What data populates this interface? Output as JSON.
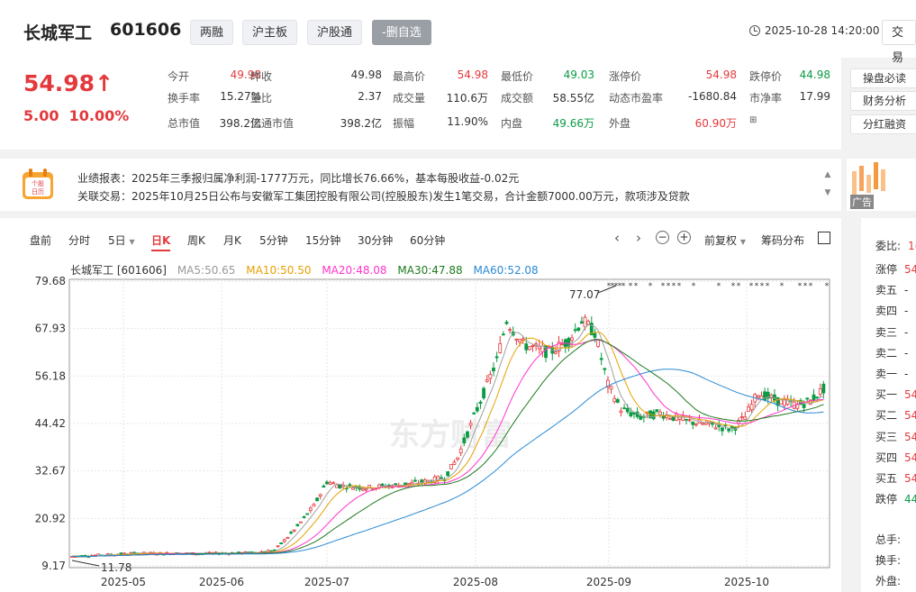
{
  "header": {
    "name": "长城军工",
    "code": "601606",
    "tags": [
      "两融",
      "沪主板",
      "沪股通",
      "-删自选"
    ],
    "datetime": "2025-10-28 14:20:00",
    "trade_label": "交易"
  },
  "quote": {
    "price": "54.98↑",
    "change": "5.00",
    "change_pct": "10.00%",
    "rows": [
      [
        [
          "今开",
          "49.98",
          "red"
        ],
        [
          "昨收",
          "49.98",
          ""
        ],
        [
          "最高价",
          "54.98",
          "red"
        ],
        [
          "最低价",
          "49.03",
          "green"
        ],
        [
          "涨停价",
          "54.98",
          "red"
        ],
        [
          "跌停价",
          "44.98",
          "green"
        ]
      ],
      [
        [
          "换手率",
          "15.27%",
          ""
        ],
        [
          "量比",
          "2.37",
          ""
        ],
        [
          "成交量",
          "110.6万",
          ""
        ],
        [
          "成交额",
          "58.55亿",
          ""
        ],
        [
          "动态市盈率",
          "-1680.84",
          ""
        ],
        [
          "市净率",
          "17.99",
          ""
        ]
      ],
      [
        [
          "总市值",
          "398.2亿",
          ""
        ],
        [
          "流通市值",
          "398.2亿",
          ""
        ],
        [
          "振幅",
          "11.90%",
          ""
        ],
        [
          "内盘",
          "49.66万",
          "green"
        ],
        [
          "外盘",
          "60.90万",
          "red"
        ],
        [
          "",
          "",
          " "
        ]
      ]
    ],
    "side_buttons": [
      "操盘必读",
      "财务分析",
      "分红融资"
    ]
  },
  "notice": {
    "icon_text": [
      "个股",
      "日历"
    ],
    "line1": "业绩报表：2025年三季报归属净利润-1777万元，同比增长76.66%，基本每股收益-0.02元",
    "line2": "关联交易：2025年10月25日公布与安徽军工集团控股有限公司(控股股东)发生1笔交易，合计金额7000.00万元，款项涉及贷款"
  },
  "ad": {
    "label": "广告"
  },
  "chart_tabs": [
    "盘前",
    "分时",
    "5日",
    "日K",
    "周K",
    "月K",
    "5分钟",
    "15分钟",
    "30分钟",
    "60分钟"
  ],
  "chart_tools": {
    "adjust": "前复权",
    "dist": "筹码分布"
  },
  "ma": {
    "name": "长城军工 [601606]",
    "ma5": "MA5:50.65",
    "ma10": "MA10:50.50",
    "ma20": "MA20:48.08",
    "ma30": "MA30:47.88",
    "ma60": "MA60:52.08"
  },
  "colors": {
    "up": "#e4393c",
    "down": "#0a9b43",
    "ma5": "#a0a0a0",
    "ma10": "#e6a000",
    "ma20": "#ff33cc",
    "ma30": "#1e7a1e",
    "ma60": "#2a8ad4"
  },
  "chart_data": {
    "type": "candlestick",
    "yticks": [
      "79.68",
      "67.93",
      "56.18",
      "44.42",
      "32.67",
      "20.92",
      "9.17"
    ],
    "ylim": [
      9.17,
      79.68
    ],
    "xticks": [
      "2025-05",
      "2025-06",
      "2025-07",
      "2025-08",
      "2025-09",
      "2025-10"
    ],
    "annotations": [
      {
        "label": "77.07"
      },
      {
        "label": "11.78"
      }
    ],
    "watermark": "东方财富"
  },
  "book": {
    "weibi": "委比:",
    "weibi_val": "1(",
    "rows": [
      [
        "涨停",
        "54"
      ],
      [
        "卖五",
        "-"
      ],
      [
        "卖四",
        "-"
      ],
      [
        "卖三",
        "-"
      ],
      [
        "卖二",
        "-"
      ],
      [
        "卖一",
        "-"
      ],
      [
        "买一",
        "54"
      ],
      [
        "买二",
        "54"
      ],
      [
        "买三",
        "54"
      ],
      [
        "买四",
        "54"
      ],
      [
        "买五",
        "54"
      ],
      [
        "跌停",
        "44"
      ]
    ],
    "bottom": [
      "总手:",
      "换手:",
      "外盘:"
    ]
  }
}
